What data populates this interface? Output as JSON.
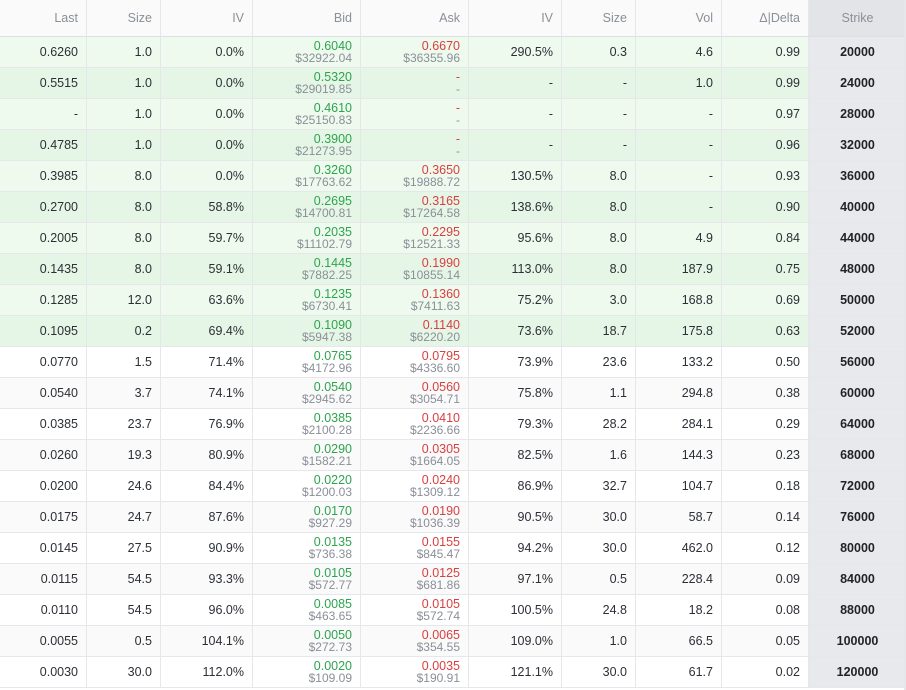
{
  "headers": {
    "last": "Last",
    "size_bid": "Size",
    "iv_bid": "IV",
    "bid": "Bid",
    "ask": "Ask",
    "iv_ask": "IV",
    "size_ask": "Size",
    "vol": "Vol",
    "delta": "Δ|Delta",
    "strike": "Strike"
  },
  "rows": [
    {
      "last": "0.6260",
      "size_bid": "1.0",
      "iv_bid": "0.0%",
      "bid_price": "0.6040",
      "bid_usd": "$32922.04",
      "ask_price": "0.6670",
      "ask_usd": "$36355.96",
      "iv_ask": "290.5%",
      "size_ask": "0.3",
      "vol": "4.6",
      "delta": "0.99",
      "strike": "20000"
    },
    {
      "last": "0.5515",
      "size_bid": "1.0",
      "iv_bid": "0.0%",
      "bid_price": "0.5320",
      "bid_usd": "$29019.85",
      "ask_price": "-",
      "ask_usd": "-",
      "iv_ask": "-",
      "size_ask": "-",
      "vol": "1.0",
      "delta": "0.99",
      "strike": "24000"
    },
    {
      "last": "-",
      "size_bid": "1.0",
      "iv_bid": "0.0%",
      "bid_price": "0.4610",
      "bid_usd": "$25150.83",
      "ask_price": "-",
      "ask_usd": "-",
      "iv_ask": "-",
      "size_ask": "-",
      "vol": "-",
      "delta": "0.97",
      "strike": "28000"
    },
    {
      "last": "0.4785",
      "size_bid": "1.0",
      "iv_bid": "0.0%",
      "bid_price": "0.3900",
      "bid_usd": "$21273.95",
      "ask_price": "-",
      "ask_usd": "-",
      "iv_ask": "-",
      "size_ask": "-",
      "vol": "-",
      "delta": "0.96",
      "strike": "32000"
    },
    {
      "last": "0.3985",
      "size_bid": "8.0",
      "iv_bid": "0.0%",
      "bid_price": "0.3260",
      "bid_usd": "$17763.62",
      "ask_price": "0.3650",
      "ask_usd": "$19888.72",
      "iv_ask": "130.5%",
      "size_ask": "8.0",
      "vol": "-",
      "delta": "0.93",
      "strike": "36000"
    },
    {
      "last": "0.2700",
      "size_bid": "8.0",
      "iv_bid": "58.8%",
      "bid_price": "0.2695",
      "bid_usd": "$14700.81",
      "ask_price": "0.3165",
      "ask_usd": "$17264.58",
      "iv_ask": "138.6%",
      "size_ask": "8.0",
      "vol": "-",
      "delta": "0.90",
      "strike": "40000"
    },
    {
      "last": "0.2005",
      "size_bid": "8.0",
      "iv_bid": "59.7%",
      "bid_price": "0.2035",
      "bid_usd": "$11102.79",
      "ask_price": "0.2295",
      "ask_usd": "$12521.33",
      "iv_ask": "95.6%",
      "size_ask": "8.0",
      "vol": "4.9",
      "delta": "0.84",
      "strike": "44000"
    },
    {
      "last": "0.1435",
      "size_bid": "8.0",
      "iv_bid": "59.1%",
      "bid_price": "0.1445",
      "bid_usd": "$7882.25",
      "ask_price": "0.1990",
      "ask_usd": "$10855.14",
      "iv_ask": "113.0%",
      "size_ask": "8.0",
      "vol": "187.9",
      "delta": "0.75",
      "strike": "48000"
    },
    {
      "last": "0.1285",
      "size_bid": "12.0",
      "iv_bid": "63.6%",
      "bid_price": "0.1235",
      "bid_usd": "$6730.41",
      "ask_price": "0.1360",
      "ask_usd": "$7411.63",
      "iv_ask": "75.2%",
      "size_ask": "3.0",
      "vol": "168.8",
      "delta": "0.69",
      "strike": "50000"
    },
    {
      "last": "0.1095",
      "size_bid": "0.2",
      "iv_bid": "69.4%",
      "bid_price": "0.1090",
      "bid_usd": "$5947.38",
      "ask_price": "0.1140",
      "ask_usd": "$6220.20",
      "iv_ask": "73.6%",
      "size_ask": "18.7",
      "vol": "175.8",
      "delta": "0.63",
      "strike": "52000"
    },
    {
      "last": "0.0770",
      "size_bid": "1.5",
      "iv_bid": "71.4%",
      "bid_price": "0.0765",
      "bid_usd": "$4172.96",
      "ask_price": "0.0795",
      "ask_usd": "$4336.60",
      "iv_ask": "73.9%",
      "size_ask": "23.6",
      "vol": "133.2",
      "delta": "0.50",
      "strike": "56000"
    },
    {
      "last": "0.0540",
      "size_bid": "3.7",
      "iv_bid": "74.1%",
      "bid_price": "0.0540",
      "bid_usd": "$2945.62",
      "ask_price": "0.0560",
      "ask_usd": "$3054.71",
      "iv_ask": "75.8%",
      "size_ask": "1.1",
      "vol": "294.8",
      "delta": "0.38",
      "strike": "60000"
    },
    {
      "last": "0.0385",
      "size_bid": "23.7",
      "iv_bid": "76.9%",
      "bid_price": "0.0385",
      "bid_usd": "$2100.28",
      "ask_price": "0.0410",
      "ask_usd": "$2236.66",
      "iv_ask": "79.3%",
      "size_ask": "28.2",
      "vol": "284.1",
      "delta": "0.29",
      "strike": "64000"
    },
    {
      "last": "0.0260",
      "size_bid": "19.3",
      "iv_bid": "80.9%",
      "bid_price": "0.0290",
      "bid_usd": "$1582.21",
      "ask_price": "0.0305",
      "ask_usd": "$1664.05",
      "iv_ask": "82.5%",
      "size_ask": "1.6",
      "vol": "144.3",
      "delta": "0.23",
      "strike": "68000"
    },
    {
      "last": "0.0200",
      "size_bid": "24.6",
      "iv_bid": "84.4%",
      "bid_price": "0.0220",
      "bid_usd": "$1200.03",
      "ask_price": "0.0240",
      "ask_usd": "$1309.12",
      "iv_ask": "86.9%",
      "size_ask": "32.7",
      "vol": "104.7",
      "delta": "0.18",
      "strike": "72000"
    },
    {
      "last": "0.0175",
      "size_bid": "24.7",
      "iv_bid": "87.6%",
      "bid_price": "0.0170",
      "bid_usd": "$927.29",
      "ask_price": "0.0190",
      "ask_usd": "$1036.39",
      "iv_ask": "90.5%",
      "size_ask": "30.0",
      "vol": "58.7",
      "delta": "0.14",
      "strike": "76000"
    },
    {
      "last": "0.0145",
      "size_bid": "27.5",
      "iv_bid": "90.9%",
      "bid_price": "0.0135",
      "bid_usd": "$736.38",
      "ask_price": "0.0155",
      "ask_usd": "$845.47",
      "iv_ask": "94.2%",
      "size_ask": "30.0",
      "vol": "462.0",
      "delta": "0.12",
      "strike": "80000"
    },
    {
      "last": "0.0115",
      "size_bid": "54.5",
      "iv_bid": "93.3%",
      "bid_price": "0.0105",
      "bid_usd": "$572.77",
      "ask_price": "0.0125",
      "ask_usd": "$681.86",
      "iv_ask": "97.1%",
      "size_ask": "0.5",
      "vol": "228.4",
      "delta": "0.09",
      "strike": "84000"
    },
    {
      "last": "0.0110",
      "size_bid": "54.5",
      "iv_bid": "96.0%",
      "bid_price": "0.0085",
      "bid_usd": "$463.65",
      "ask_price": "0.0105",
      "ask_usd": "$572.74",
      "iv_ask": "100.5%",
      "size_ask": "24.8",
      "vol": "18.2",
      "delta": "0.08",
      "strike": "88000"
    },
    {
      "last": "0.0055",
      "size_bid": "0.5",
      "iv_bid": "104.1%",
      "bid_price": "0.0050",
      "bid_usd": "$272.73",
      "ask_price": "0.0065",
      "ask_usd": "$354.55",
      "iv_ask": "109.0%",
      "size_ask": "1.0",
      "vol": "66.5",
      "delta": "0.05",
      "strike": "100000"
    },
    {
      "last": "0.0030",
      "size_bid": "30.0",
      "iv_bid": "112.0%",
      "bid_price": "0.0020",
      "bid_usd": "$109.09",
      "ask_price": "0.0035",
      "ask_usd": "$190.91",
      "iv_ask": "121.1%",
      "size_ask": "30.0",
      "vol": "61.7",
      "delta": "0.02",
      "strike": "120000"
    }
  ],
  "in_the_money_rows": 10,
  "colors": {
    "bid": "#2da44e",
    "ask": "#d93f3f",
    "itm_background": "#eefaee",
    "strike_column": "#e8e9ec"
  }
}
